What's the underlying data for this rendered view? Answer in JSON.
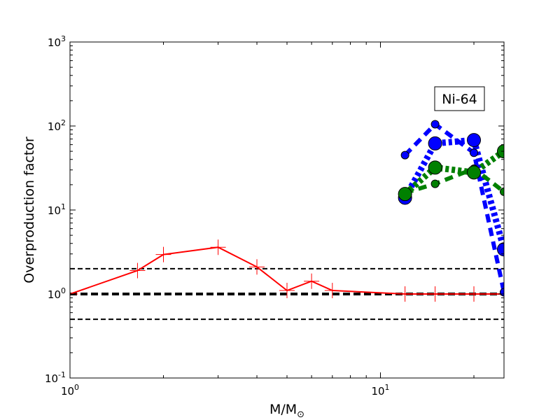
{
  "chart_data": {
    "type": "line",
    "title": "",
    "xlabel": "M/M⊙",
    "ylabel": "Overproduction factor",
    "xscale": "log",
    "yscale": "log",
    "xlim": [
      1,
      25
    ],
    "ylim": [
      0.1,
      1000
    ],
    "grid": false,
    "x_ticks": [
      {
        "value": 1,
        "base": "10",
        "exp": "0"
      },
      {
        "value": 10,
        "base": "10",
        "exp": "1"
      }
    ],
    "y_ticks": [
      {
        "value": 0.1,
        "base": "10",
        "exp": "-1"
      },
      {
        "value": 1,
        "base": "10",
        "exp": "0"
      },
      {
        "value": 10,
        "base": "10",
        "exp": "1"
      },
      {
        "value": 100,
        "base": "10",
        "exp": "2"
      },
      {
        "value": 1000,
        "base": "10",
        "exp": "3"
      }
    ],
    "annotation": "Ni-64",
    "reference_lines": [
      {
        "y": 2,
        "style": "dashed",
        "color": "#000000"
      },
      {
        "y": 1,
        "style": "dashed-thick",
        "color": "#000000"
      },
      {
        "y": 0.5,
        "style": "dashed",
        "color": "#000000"
      }
    ],
    "series": [
      {
        "color": "#ff0000",
        "style": "solid",
        "marker": "plus",
        "x": [
          1,
          1.65,
          2,
          3,
          4,
          5,
          6,
          7,
          12,
          15,
          20,
          25
        ],
        "y": [
          1.0,
          1.9,
          2.95,
          3.6,
          2.1,
          1.1,
          1.42,
          1.1,
          1.0,
          1.0,
          1.0,
          1.0
        ]
      },
      {
        "color": "#0000ff",
        "style": "dashed",
        "marker": "circle",
        "size": "small",
        "x": [
          12,
          15,
          20,
          25
        ],
        "y": [
          45,
          105,
          48,
          1.05
        ]
      },
      {
        "color": "#0000ff",
        "style": "dotted-thick",
        "marker": "circle",
        "size": "large",
        "x": [
          12,
          15,
          20,
          25
        ],
        "y": [
          14,
          62,
          68,
          3.4
        ]
      },
      {
        "color": "#008000",
        "style": "dashed",
        "marker": "circle",
        "size": "small",
        "x": [
          12,
          15,
          20,
          25
        ],
        "y": [
          16,
          20.5,
          31,
          16.5
        ]
      },
      {
        "color": "#008000",
        "style": "dotted-thick",
        "marker": "circle",
        "size": "large",
        "x": [
          12,
          15,
          20,
          25
        ],
        "y": [
          15.5,
          32,
          28,
          50
        ]
      }
    ]
  }
}
